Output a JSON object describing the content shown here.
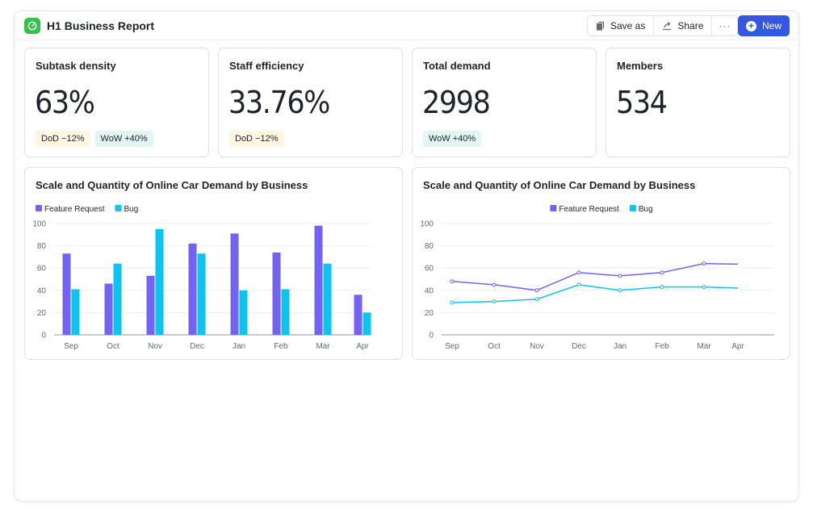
{
  "header": {
    "title": "H1 Business Report",
    "app_icon": "gauge-icon",
    "buttons": {
      "save_as": "Save as",
      "share": "Share",
      "more": "···",
      "new": "New"
    },
    "accent_color": "#3357e0"
  },
  "kpis": [
    {
      "label": "Subtask density",
      "value": "63%",
      "badges": [
        {
          "type": "dod",
          "text": "DoD −12%"
        },
        {
          "type": "wow",
          "text": "WoW +40%"
        }
      ]
    },
    {
      "label": "Staff efficiency",
      "value": "33.76%",
      "badges": [
        {
          "type": "dod",
          "text": "DoD −12%"
        }
      ]
    },
    {
      "label": "Total demand",
      "value": "2998",
      "badges": [
        {
          "type": "wow",
          "text": "WoW +40%"
        }
      ]
    },
    {
      "label": "Members",
      "value": "534",
      "badges": []
    }
  ],
  "chart_data": [
    {
      "type": "bar",
      "title": "Scale and Quantity of Online Car Demand by Business",
      "categories": [
        "Sep",
        "Oct",
        "Nov",
        "Dec",
        "Jan",
        "Feb",
        "Mar",
        "Apr"
      ],
      "series": [
        {
          "name": "Feature Request",
          "color": "#7262f5",
          "values": [
            73,
            46,
            53,
            82,
            91,
            74,
            98,
            36
          ]
        },
        {
          "name": "Bug",
          "color": "#0cc4f2",
          "values": [
            41,
            64,
            95,
            73,
            40,
            41,
            64,
            20
          ]
        }
      ],
      "xlabel": "",
      "ylabel": "",
      "ylim": [
        0,
        100
      ],
      "yticks": [
        0,
        20,
        40,
        60,
        80,
        100
      ],
      "grid": true,
      "legend": "top-left"
    },
    {
      "type": "line",
      "title": "Scale and Quantity of Online Car Demand by Business",
      "categories": [
        "Sep",
        "Oct",
        "Nov",
        "Dec",
        "Jan",
        "Feb",
        "Mar",
        "Apr"
      ],
      "series": [
        {
          "name": "Feature Request",
          "color": "#7262f5",
          "values": [
            48,
            45,
            40,
            56,
            53,
            56,
            64,
            63.5
          ]
        },
        {
          "name": "Bug",
          "color": "#0cc4f2",
          "values": [
            29,
            30,
            32,
            45,
            40,
            43,
            43,
            42
          ]
        }
      ],
      "xlabel": "",
      "ylabel": "",
      "ylim": [
        0,
        100
      ],
      "yticks": [
        0,
        20,
        40,
        60,
        80,
        100
      ],
      "grid": true,
      "legend": "top-center"
    }
  ]
}
